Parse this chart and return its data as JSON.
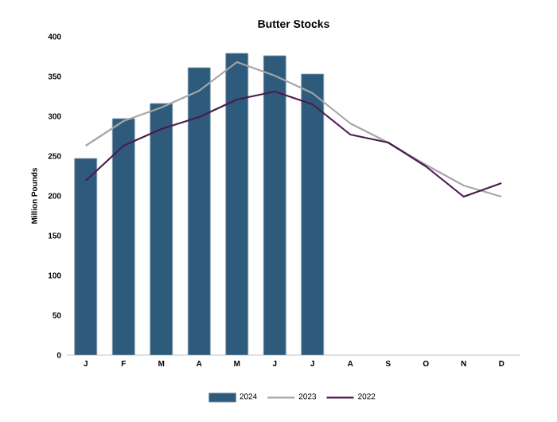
{
  "chart_data": {
    "type": "bar",
    "title": "Butter Stocks",
    "ylabel": "Million Pounds",
    "categories": [
      "J",
      "F",
      "M",
      "A",
      "M",
      "J",
      "J",
      "A",
      "S",
      "O",
      "N",
      "D"
    ],
    "ylim": [
      0,
      400
    ],
    "yticks": [
      0,
      50,
      100,
      150,
      200,
      250,
      300,
      350,
      400
    ],
    "legend": "bottom",
    "grid": false,
    "series": [
      {
        "name": "2024",
        "color": "#2e5b7b",
        "values": [
          247,
          297,
          316,
          361,
          379,
          376,
          353,
          null,
          null,
          null,
          null,
          null
        ]
      },
      {
        "name": "2023",
        "type": "line",
        "color": "#a6a6a6",
        "values": [
          263,
          294,
          311,
          332,
          368,
          351,
          329,
          291,
          267,
          239,
          213,
          199
        ]
      },
      {
        "name": "2022",
        "type": "line",
        "color": "#4b1a4f",
        "values": [
          219,
          263,
          284,
          299,
          321,
          331,
          315,
          277,
          267,
          237,
          199,
          216
        ]
      }
    ]
  }
}
